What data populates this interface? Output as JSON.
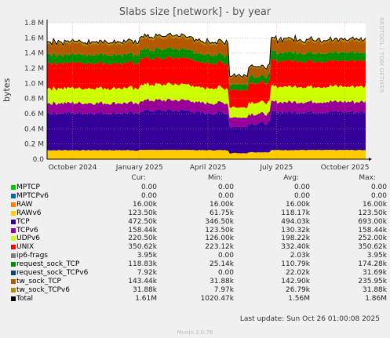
{
  "chart_data": {
    "type": "area",
    "title": "Slabs size [network] - by year",
    "ylabel": "bytes",
    "side_label": "RRDTOOL / TOBI OETIKER",
    "ylim": [
      0,
      1800000
    ],
    "yticks": [
      {
        "v": 0,
        "label": "0.0"
      },
      {
        "v": 200000,
        "label": "0.2 M"
      },
      {
        "v": 400000,
        "label": "0.4 M"
      },
      {
        "v": 600000,
        "label": "0.6 M"
      },
      {
        "v": 800000,
        "label": "0.8 M"
      },
      {
        "v": 1000000,
        "label": "1.0 M"
      },
      {
        "v": 1200000,
        "label": "1.2 M"
      },
      {
        "v": 1400000,
        "label": "1.4 M"
      },
      {
        "v": 1600000,
        "label": "1.6 M"
      },
      {
        "v": 1800000,
        "label": "1.8 M"
      }
    ],
    "xticks": [
      {
        "pos": 0.08,
        "label": "October 2024"
      },
      {
        "pos": 0.29,
        "label": "January 2025"
      },
      {
        "pos": 0.505,
        "label": "April 2025"
      },
      {
        "pos": 0.72,
        "label": "July 2025"
      },
      {
        "pos": 0.935,
        "label": "October 2025"
      }
    ],
    "grid": true,
    "stack_order": [
      "RAWv6",
      "TCP",
      "TCPv6",
      "UDPv6",
      "UNIX",
      "request_sock_TCP",
      "MPTCP",
      "tw_sock_TCP",
      "tw_sock_TCPv6"
    ],
    "series": [
      {
        "name": "MPTCP",
        "color": "#00cc00",
        "cur": "0.00",
        "min": "0.00",
        "avg": "0.00",
        "max": "0.00"
      },
      {
        "name": "MPTCPv6",
        "color": "#0066b3",
        "cur": "0.00",
        "min": "0.00",
        "avg": "0.00",
        "max": "0.00"
      },
      {
        "name": "RAW",
        "color": "#ff8000",
        "cur": "16.00k",
        "min": "16.00k",
        "avg": "16.00k",
        "max": "16.00k"
      },
      {
        "name": "RAWv6",
        "color": "#ffcc00",
        "cur": "123.50k",
        "min": "61.75k",
        "avg": "118.17k",
        "max": "123.50k"
      },
      {
        "name": "TCP",
        "color": "#330099",
        "cur": "472.50k",
        "min": "346.50k",
        "avg": "494.03k",
        "max": "693.00k"
      },
      {
        "name": "TCPv6",
        "color": "#990099",
        "cur": "158.44k",
        "min": "123.50k",
        "avg": "130.32k",
        "max": "158.44k"
      },
      {
        "name": "UDPv6",
        "color": "#ccff00",
        "cur": "220.50k",
        "min": "126.00k",
        "avg": "198.22k",
        "max": "252.00k"
      },
      {
        "name": "UNIX",
        "color": "#ff0000",
        "cur": "350.62k",
        "min": "223.12k",
        "avg": "332.40k",
        "max": "350.62k"
      },
      {
        "name": "ip6-frags",
        "color": "#808080",
        "cur": "3.95k",
        "min": "0.00",
        "avg": "2.03k",
        "max": "3.95k"
      },
      {
        "name": "request_sock_TCP",
        "color": "#008f00",
        "cur": "118.83k",
        "min": "25.14k",
        "avg": "110.79k",
        "max": "174.28k"
      },
      {
        "name": "request_sock_TCPv6",
        "color": "#00487d",
        "cur": "7.92k",
        "min": "0.00",
        "avg": "22.02k",
        "max": "31.69k"
      },
      {
        "name": "tw_sock_TCP",
        "color": "#b35a00",
        "cur": "143.44k",
        "min": "31.88k",
        "avg": "142.90k",
        "max": "235.95k"
      },
      {
        "name": "tw_sock_TCPv6",
        "color": "#b38f00",
        "cur": "31.88k",
        "min": "7.97k",
        "avg": "26.79k",
        "max": "31.88k"
      },
      {
        "name": "Total",
        "color": "#000000",
        "cur": "1.61M",
        "min": "1020.47k",
        "avg": "1.56M",
        "max": "1.86M"
      }
    ]
  },
  "legend_headers": {
    "cur": "Cur:",
    "min": "Min:",
    "avg": "Avg:",
    "max": "Max:"
  },
  "footer": {
    "last_update": "Last update: Sun Oct 26 01:00:08 2025",
    "generator": "Munin 2.0.76"
  }
}
